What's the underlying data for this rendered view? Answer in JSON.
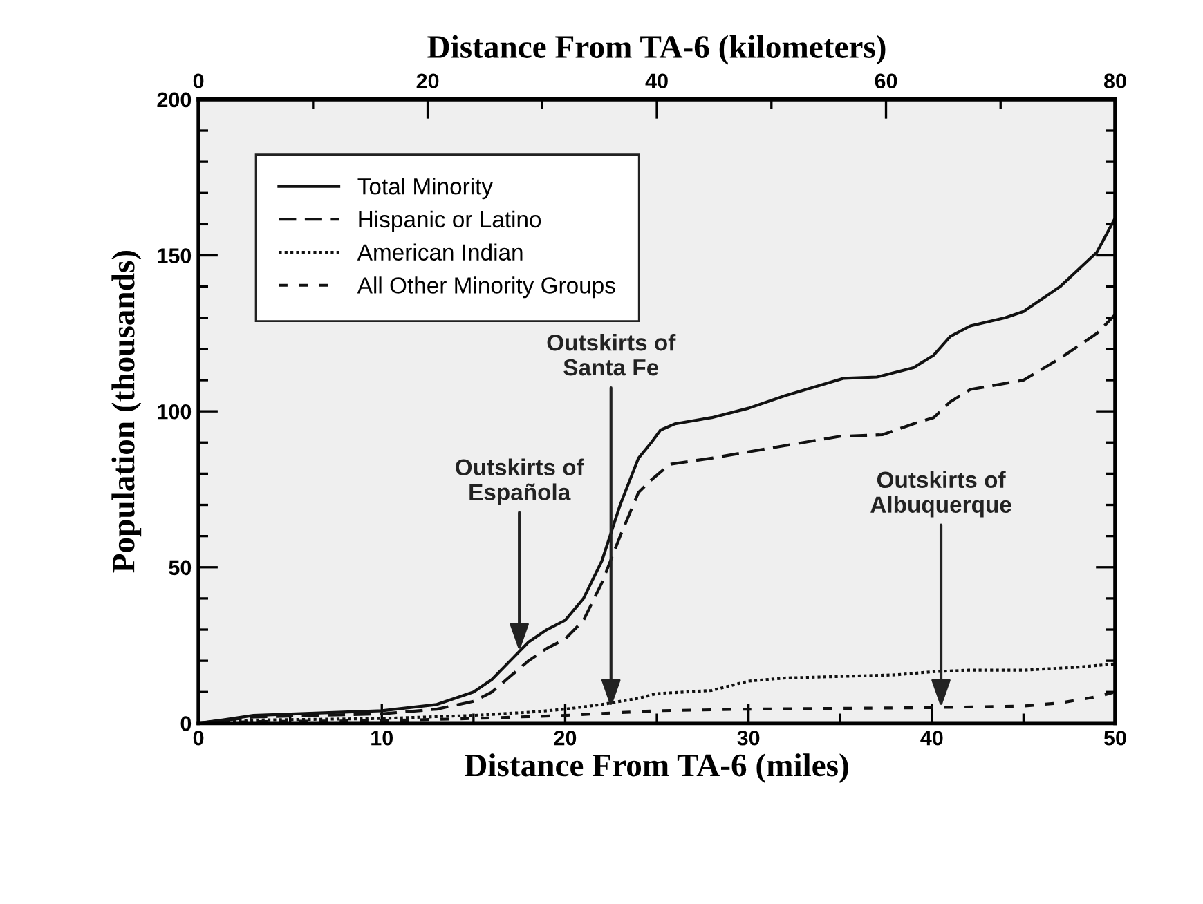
{
  "chart_data": {
    "type": "line",
    "xlabel": "Distance From TA-6 (miles)",
    "x2label": "Distance From TA-6 (kilometers)",
    "ylabel": "Population (thousands)",
    "xlim": [
      0,
      50
    ],
    "xticks": [
      0,
      {
        "value": 5,
        "label": null
      },
      10,
      {
        "value": 15,
        "label": null
      },
      20,
      {
        "value": 25,
        "label": null
      },
      30,
      {
        "value": 35,
        "label": null
      },
      40,
      {
        "value": 45,
        "label": null
      },
      50
    ],
    "x2lim": [
      0,
      80
    ],
    "x2ticks": [
      0,
      {
        "value": 10,
        "label": null
      },
      20,
      {
        "value": 30,
        "label": null
      },
      40,
      {
        "value": 50,
        "label": null
      },
      60,
      {
        "value": 70,
        "label": null
      },
      80
    ],
    "ylim": [
      0,
      200
    ],
    "yticks": [
      0,
      {
        "value": 10,
        "label": null
      },
      {
        "value": 20,
        "label": null
      },
      {
        "value": 30,
        "label": null
      },
      {
        "value": 40,
        "label": null
      },
      50,
      {
        "value": 60,
        "label": null
      },
      {
        "value": 70,
        "label": null
      },
      {
        "value": 80,
        "label": null
      },
      {
        "value": 90,
        "label": null
      },
      100,
      {
        "value": 110,
        "label": null
      },
      {
        "value": 120,
        "label": null
      },
      {
        "value": 130,
        "label": null
      },
      {
        "value": 140,
        "label": null
      },
      150,
      {
        "value": 160,
        "label": null
      },
      {
        "value": 170,
        "label": null
      },
      {
        "value": 180,
        "label": null
      },
      {
        "value": 190,
        "label": null
      },
      200
    ],
    "grid": false,
    "legend": "top left",
    "series": [
      {
        "name": "Total Minority",
        "color": "#111111",
        "line_style": "solid",
        "x": [
          0,
          1.3,
          3,
          10,
          13,
          15,
          16,
          17,
          18,
          19,
          20,
          21,
          22,
          23,
          24,
          24.7,
          25.2,
          26,
          28,
          30,
          32,
          35.2,
          37,
          39,
          40.1,
          41,
          42.1,
          44,
          45,
          47,
          49,
          50
        ],
        "values": [
          0,
          1,
          2.5,
          4,
          6,
          10,
          14,
          20,
          26,
          30,
          33,
          40,
          52,
          70,
          85,
          90,
          94,
          96,
          98,
          101,
          105,
          110.6,
          111,
          114,
          118,
          124,
          127.4,
          130,
          132,
          140,
          151,
          162
        ]
      },
      {
        "name": "Hispanic or Latino",
        "color": "#111111",
        "line_style": "dashed",
        "x": [
          0,
          3,
          10,
          13,
          15,
          16,
          17,
          18,
          19,
          20,
          21,
          22,
          23,
          24,
          24.7,
          25.7,
          28,
          30,
          32,
          35,
          37.3,
          39,
          40.1,
          41,
          42.1,
          45,
          47,
          49,
          50
        ],
        "values": [
          0,
          2,
          3,
          4.5,
          7,
          10,
          15,
          20,
          24,
          27,
          33,
          45,
          60,
          74,
          78,
          83,
          85,
          87,
          89,
          92,
          92.5,
          96,
          98,
          103,
          107,
          110,
          117,
          125,
          131
        ]
      },
      {
        "name": "American Indian",
        "color": "#111111",
        "line_style": "dotted",
        "x": [
          0,
          3,
          10,
          15,
          18,
          20,
          22,
          24,
          25,
          28,
          30,
          32,
          35,
          38,
          40,
          42,
          45,
          48,
          50
        ],
        "values": [
          0,
          1,
          1.5,
          2.5,
          3.5,
          4.5,
          6,
          8,
          9.5,
          10.5,
          13.5,
          14.5,
          15,
          15.5,
          16.5,
          17,
          17,
          18,
          19
        ]
      },
      {
        "name": "All Other Minority Groups",
        "color": "#111111",
        "line_style": "short_dashed",
        "x": [
          0,
          3,
          10,
          15,
          20,
          25,
          30,
          40,
          45,
          47,
          49,
          50
        ],
        "values": [
          0,
          0.5,
          0.8,
          1.5,
          2.5,
          4,
          4.5,
          5,
          5.5,
          6.5,
          8.5,
          10
        ]
      }
    ],
    "annotations": [
      {
        "text": "Outskirts of\nEspañola",
        "x": 17.5,
        "y": 23
      },
      {
        "text": "Outskirts of\nSanta Fe",
        "x": 22.5,
        "y": 5
      },
      {
        "text": "Outskirts of\nAlbuquerque",
        "x": 40.5,
        "y": 5
      }
    ]
  }
}
